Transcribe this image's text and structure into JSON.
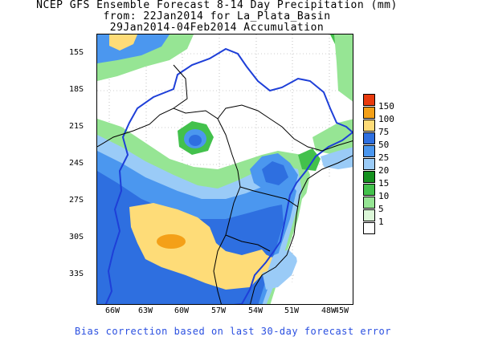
{
  "title": {
    "line1": "NCEP GFS Ensemble Forecast 8-14 Day Precipitation (mm)",
    "line2": "from: 22Jan2014   for La_Plata_Basin",
    "line3": "29Jan2014-04Feb2014 Accumulation"
  },
  "axes": {
    "y_labels": [
      "15S",
      "18S",
      "21S",
      "24S",
      "27S",
      "30S",
      "33S"
    ],
    "x_labels": [
      "66W",
      "63W",
      "60W",
      "57W",
      "54W",
      "51W",
      "48W",
      "45W"
    ]
  },
  "legend": {
    "levels": [
      {
        "label": "150",
        "color": "#e83a0e"
      },
      {
        "label": "100",
        "color": "#f4a018"
      },
      {
        "label": "75",
        "color": "#fedc78"
      },
      {
        "label": "50",
        "color": "#2e6fe0"
      },
      {
        "label": "25",
        "color": "#4b97ef"
      },
      {
        "label": "20",
        "color": "#9acbf7"
      },
      {
        "label": "15",
        "color": "#15911f"
      },
      {
        "label": "10",
        "color": "#43c14c"
      },
      {
        "label": "5",
        "color": "#96e594"
      },
      {
        "label": "1",
        "color": "#dcf7d8"
      },
      {
        "label": "",
        "color": "#ffffff"
      }
    ]
  },
  "footer": "Bias correction based on last 30-day forecast error",
  "colors": {
    "basin_outline": "#1e3fd8",
    "borders": "#000000",
    "grid": "#9a9a9a"
  }
}
